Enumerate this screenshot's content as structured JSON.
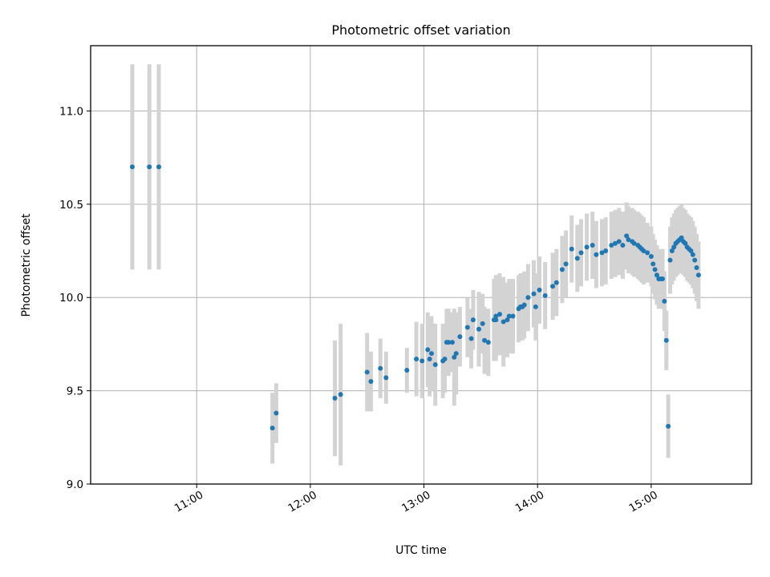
{
  "chart_data": {
    "type": "scatter",
    "title": "Photometric offset variation",
    "xlabel": "UTC time",
    "ylabel": "Photometric offset",
    "xlim": [
      "10:04",
      "15:53"
    ],
    "ylim": [
      9.0,
      11.35
    ],
    "xticks": [
      "11:00",
      "12:00",
      "13:00",
      "14:00",
      "15:00"
    ],
    "yticks": [
      "9.0",
      "9.5",
      "10.0",
      "10.5",
      "11.0"
    ],
    "grid": true,
    "colors": {
      "points": "#1f77b4",
      "errorbars": "#d3d3d3",
      "grid": "#b0b0b0"
    },
    "series": [
      {
        "x": [
          "10:26",
          "10:35",
          "10:40",
          "11:40",
          "11:42",
          "12:13",
          "12:16",
          "12:30",
          "12:32",
          "12:37",
          "12:40",
          "12:51",
          "12:56",
          "12:59",
          "13:02",
          "13:03",
          "13:04",
          "13:06",
          "13:10",
          "13:11",
          "13:12",
          "13:13",
          "13:15",
          "13:16",
          "13:17",
          "13:19",
          "13:23",
          "13:25",
          "13:26",
          "13:29",
          "13:31",
          "13:32",
          "13:34",
          "13:37",
          "13:38",
          "13:38",
          "13:40",
          "13:42",
          "13:44",
          "13:45",
          "13:47",
          "13:50",
          "13:51",
          "13:52",
          "13:53",
          "13:55",
          "13:58",
          "13:59",
          "14:01",
          "14:04",
          "14:08",
          "14:10",
          "14:13",
          "14:15",
          "14:18",
          "14:21",
          "14:23",
          "14:26",
          "14:29",
          "14:31",
          "14:34",
          "14:36",
          "14:39",
          "14:41",
          "14:43",
          "14:45",
          "14:47",
          "14:48",
          "14:50",
          "14:51",
          "14:53",
          "14:54",
          "14:55",
          "14:56",
          "14:58",
          "15:00",
          "15:01",
          "15:02",
          "15:03",
          "15:04",
          "15:05",
          "15:06",
          "15:07",
          "15:08",
          "15:09",
          "15:10",
          "15:11",
          "15:12",
          "15:13",
          "15:14",
          "15:15",
          "15:16",
          "15:17",
          "15:18",
          "15:19",
          "15:20",
          "15:21",
          "15:22",
          "15:23",
          "15:24",
          "15:25"
        ],
        "y": [
          10.7,
          10.7,
          10.7,
          9.3,
          9.38,
          9.46,
          9.48,
          9.6,
          9.55,
          9.62,
          9.57,
          9.61,
          9.67,
          9.66,
          9.72,
          9.67,
          9.7,
          9.64,
          9.66,
          9.67,
          9.76,
          9.76,
          9.76,
          9.68,
          9.7,
          9.79,
          9.84,
          9.78,
          9.88,
          9.83,
          9.86,
          9.77,
          9.76,
          9.88,
          9.9,
          9.88,
          9.91,
          9.87,
          9.88,
          9.9,
          9.9,
          9.94,
          9.95,
          9.95,
          9.96,
          10.0,
          10.02,
          9.95,
          10.04,
          10.01,
          10.06,
          10.08,
          10.15,
          10.18,
          10.26,
          10.21,
          10.24,
          10.27,
          10.28,
          10.23,
          10.24,
          10.25,
          10.28,
          10.29,
          10.3,
          10.28,
          10.33,
          10.31,
          10.3,
          10.29,
          10.28,
          10.27,
          10.26,
          10.25,
          10.24,
          10.22,
          10.18,
          10.15,
          10.12,
          10.1,
          10.1,
          10.1,
          9.98,
          9.77,
          9.31,
          10.2,
          10.25,
          10.27,
          10.29,
          10.3,
          10.31,
          10.32,
          10.3,
          10.29,
          10.27,
          10.26,
          10.25,
          10.23,
          10.2,
          10.16,
          10.12
        ],
        "yerr": [
          0.55,
          0.55,
          0.55,
          0.19,
          0.16,
          0.31,
          0.38,
          0.21,
          0.16,
          0.16,
          0.14,
          0.12,
          0.2,
          0.2,
          0.2,
          0.2,
          0.2,
          0.22,
          0.2,
          0.18,
          0.18,
          0.18,
          0.16,
          0.26,
          0.22,
          0.16,
          0.16,
          0.16,
          0.16,
          0.2,
          0.16,
          0.18,
          0.18,
          0.22,
          0.22,
          0.22,
          0.22,
          0.24,
          0.2,
          0.2,
          0.2,
          0.18,
          0.18,
          0.18,
          0.18,
          0.18,
          0.18,
          0.18,
          0.18,
          0.18,
          0.18,
          0.18,
          0.18,
          0.18,
          0.18,
          0.18,
          0.18,
          0.18,
          0.18,
          0.18,
          0.18,
          0.18,
          0.18,
          0.18,
          0.18,
          0.18,
          0.18,
          0.18,
          0.18,
          0.18,
          0.18,
          0.18,
          0.18,
          0.18,
          0.16,
          0.16,
          0.16,
          0.16,
          0.16,
          0.16,
          0.16,
          0.16,
          0.16,
          0.16,
          0.17,
          0.18,
          0.18,
          0.18,
          0.18,
          0.18,
          0.18,
          0.18,
          0.18,
          0.18,
          0.18,
          0.18,
          0.18,
          0.18,
          0.18,
          0.18,
          0.18
        ]
      }
    ]
  }
}
